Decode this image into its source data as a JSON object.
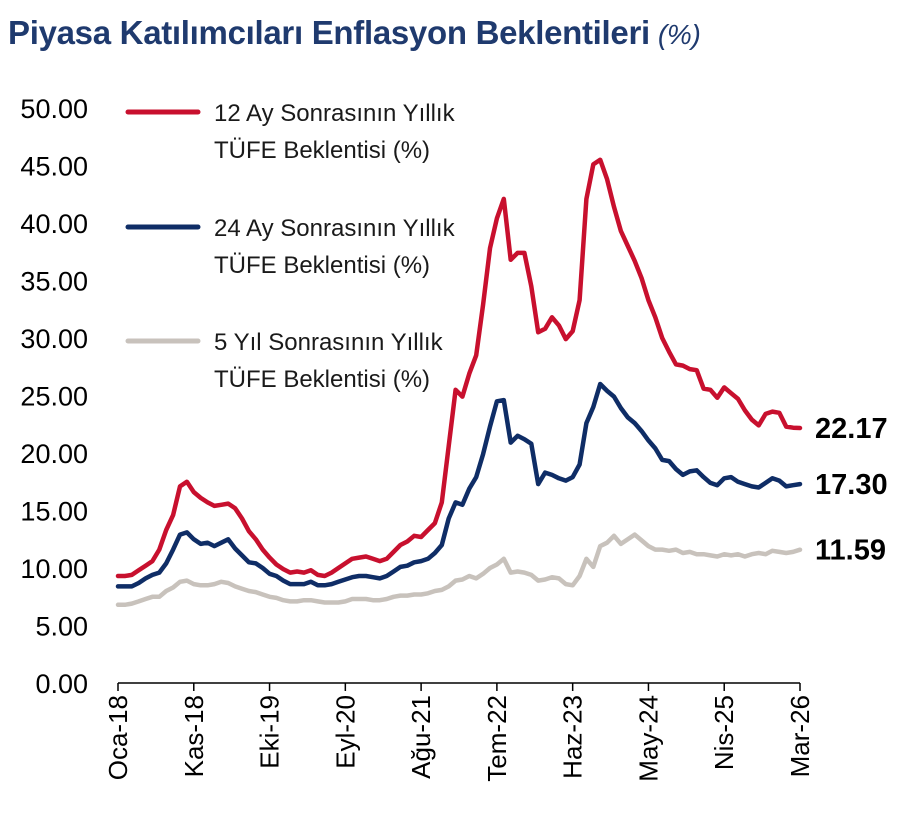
{
  "title": "Piyasa Katılımcıları Enflasyon Beklentileri",
  "title_unit": "(%)",
  "chart_data": {
    "type": "line",
    "title": "Piyasa Katılımcıları Enflasyon Beklentileri",
    "unit": "(%)",
    "x_start": "Oca-18",
    "x_tick_labels": [
      "Oca-18",
      "Kas-18",
      "Eki-19",
      "Eyl-20",
      "Ağu-21",
      "Tem-22",
      "Haz-23",
      "May-24",
      "Nis-25",
      "Mar-26"
    ],
    "y_tick_labels": [
      "0.00",
      "5.00",
      "10.00",
      "15.00",
      "20.00",
      "25.00",
      "30.00",
      "35.00",
      "40.00",
      "45.00",
      "50.00"
    ],
    "ylim": [
      0,
      50
    ],
    "grid": false,
    "legend_position": "top-left",
    "series": [
      {
        "name": "12 Ay Sonrasının Yıllık TÜFE Beklentisi (%)",
        "legend_line1": "12 Ay Sonrasının Yıllık",
        "legend_line2": "TÜFE Beklentisi (%)",
        "color": "#c8102e",
        "end_label": "22.17",
        "values": [
          9.3,
          9.3,
          9.4,
          9.8,
          10.2,
          10.6,
          11.6,
          13.3,
          14.6,
          17.1,
          17.5,
          16.6,
          16.1,
          15.7,
          15.4,
          15.5,
          15.6,
          15.2,
          14.3,
          13.2,
          12.5,
          11.6,
          10.9,
          10.3,
          9.9,
          9.6,
          9.7,
          9.6,
          9.8,
          9.4,
          9.3,
          9.6,
          10.0,
          10.4,
          10.8,
          10.9,
          11.0,
          10.8,
          10.6,
          10.8,
          11.4,
          12.0,
          12.3,
          12.8,
          12.7,
          13.3,
          13.9,
          15.7,
          20.6,
          25.5,
          24.9,
          26.9,
          28.5,
          32.9,
          37.8,
          40.4,
          42.1,
          36.8,
          37.4,
          37.4,
          34.5,
          30.5,
          30.8,
          31.8,
          31.1,
          29.9,
          30.6,
          33.3,
          42.1,
          45.1,
          45.5,
          43.8,
          41.4,
          39.3,
          38.0,
          36.7,
          35.2,
          33.3,
          31.8,
          30.0,
          28.8,
          27.7,
          27.6,
          27.3,
          27.2,
          25.6,
          25.5,
          24.8,
          25.7,
          25.2,
          24.7,
          23.7,
          22.9,
          22.4,
          23.4,
          23.6,
          23.5,
          22.3,
          22.2,
          22.17
        ]
      },
      {
        "name": "24 Ay Sonrasının Yıllık TÜFE Beklentisi (%)",
        "legend_line1": "24 Ay Sonrasının Yıllık",
        "legend_line2": "TÜFE Beklentisi (%)",
        "color": "#0f2d66",
        "end_label": "17.30",
        "values": [
          8.4,
          8.4,
          8.4,
          8.7,
          9.1,
          9.4,
          9.6,
          10.4,
          11.6,
          12.9,
          13.1,
          12.5,
          12.1,
          12.2,
          11.9,
          12.2,
          12.5,
          11.7,
          11.1,
          10.5,
          10.4,
          10.0,
          9.5,
          9.3,
          8.9,
          8.6,
          8.6,
          8.6,
          8.8,
          8.5,
          8.5,
          8.6,
          8.8,
          9.0,
          9.2,
          9.3,
          9.3,
          9.2,
          9.1,
          9.3,
          9.7,
          10.1,
          10.2,
          10.5,
          10.6,
          10.8,
          11.3,
          12.0,
          14.3,
          15.7,
          15.5,
          16.9,
          17.9,
          19.9,
          22.3,
          24.5,
          24.6,
          20.9,
          21.5,
          21.2,
          20.8,
          17.3,
          18.3,
          18.1,
          17.8,
          17.6,
          17.9,
          19.0,
          22.6,
          24.0,
          26.0,
          25.4,
          24.9,
          23.9,
          23.1,
          22.6,
          21.9,
          21.1,
          20.4,
          19.4,
          19.3,
          18.6,
          18.1,
          18.4,
          18.5,
          17.9,
          17.4,
          17.2,
          17.8,
          17.9,
          17.5,
          17.3,
          17.1,
          17.0,
          17.4,
          17.8,
          17.6,
          17.1,
          17.2,
          17.3
        ]
      },
      {
        "name": "5 Yıl Sonrasının Yıllık TÜFE Beklentisi (%)",
        "legend_line1": "5 Yıl Sonrasının Yıllık",
        "legend_line2": "TÜFE Beklentisi (%)",
        "color": "#c8c2bc",
        "end_label": "11.59",
        "values": [
          6.8,
          6.8,
          6.9,
          7.1,
          7.3,
          7.5,
          7.5,
          8.0,
          8.3,
          8.8,
          8.9,
          8.6,
          8.5,
          8.5,
          8.6,
          8.8,
          8.7,
          8.4,
          8.2,
          8.0,
          7.9,
          7.7,
          7.5,
          7.4,
          7.2,
          7.1,
          7.1,
          7.2,
          7.2,
          7.1,
          7.0,
          7.0,
          7.0,
          7.1,
          7.3,
          7.3,
          7.3,
          7.2,
          7.2,
          7.3,
          7.5,
          7.6,
          7.6,
          7.7,
          7.7,
          7.8,
          8.0,
          8.1,
          8.4,
          8.9,
          9.0,
          9.3,
          9.1,
          9.5,
          10.0,
          10.3,
          10.8,
          9.6,
          9.7,
          9.6,
          9.4,
          8.9,
          9.0,
          9.2,
          9.1,
          8.6,
          8.5,
          9.3,
          10.8,
          10.1,
          11.9,
          12.2,
          12.8,
          12.1,
          12.5,
          12.9,
          12.4,
          11.9,
          11.6,
          11.6,
          11.5,
          11.6,
          11.3,
          11.4,
          11.2,
          11.2,
          11.1,
          11.0,
          11.2,
          11.1,
          11.2,
          11.0,
          11.2,
          11.3,
          11.2,
          11.5,
          11.4,
          11.3,
          11.4,
          11.59
        ]
      }
    ]
  }
}
